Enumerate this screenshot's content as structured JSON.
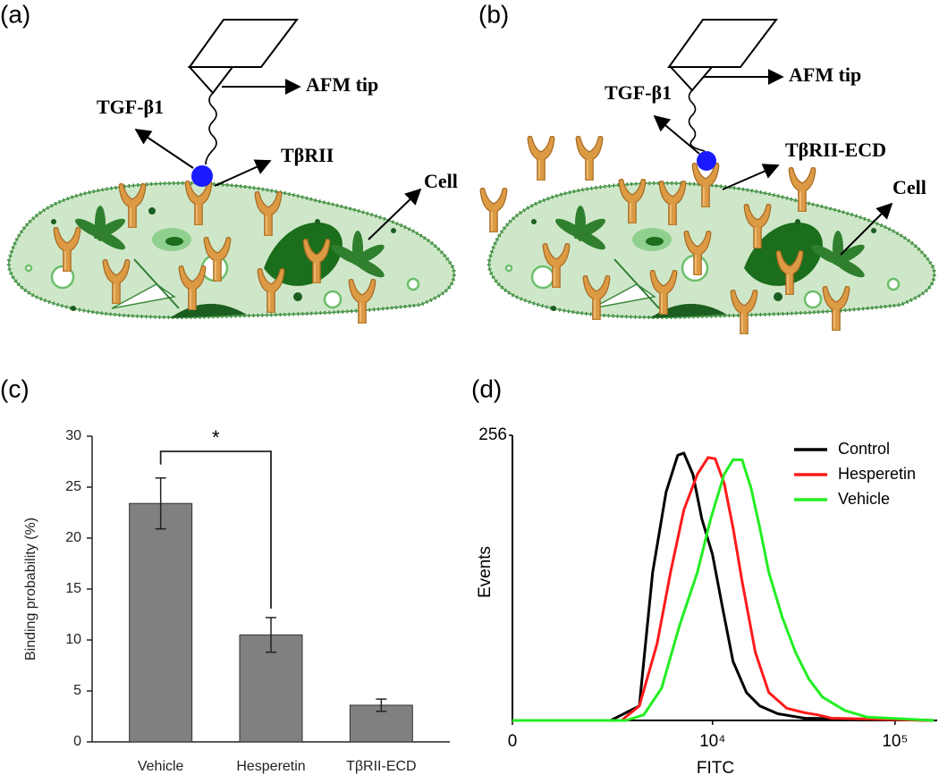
{
  "diagrams": [
    {
      "panel": "(a)",
      "tip": "AFM tip",
      "ligand": "TGF-β1",
      "receptor": "TβRII",
      "cell": "Cell"
    },
    {
      "panel": "(b)",
      "tip": "AFM tip",
      "ligand": "TGF-β1",
      "receptor": "TβRII-ECD",
      "cell": "Cell"
    }
  ],
  "chart_data": [
    {
      "panel": "(c)",
      "type": "bar",
      "ylabel": "Binding probability (%)",
      "categories": [
        "Vehicle",
        "Hesperetin",
        "TβRII-ECD"
      ],
      "values": [
        23.4,
        10.5,
        3.6
      ],
      "errors": [
        2.5,
        1.7,
        0.6
      ],
      "color": "#808080",
      "ylim": [
        0,
        30
      ],
      "yticks": [
        0,
        5,
        10,
        15,
        20,
        25,
        30
      ],
      "annotation": "*"
    },
    {
      "panel": "(d)",
      "type": "line",
      "xlabel": "FITC",
      "ylabel": "Events",
      "xscale": "biexponential",
      "xlim": [
        0,
        170000
      ],
      "xticks": [
        0,
        {
          "value": 10000,
          "label": "10⁴"
        },
        {
          "value": 100000,
          "label": "10⁵"
        }
      ],
      "ylim": [
        0,
        256
      ],
      "yticks": [
        256
      ],
      "legend": "upper right",
      "series": [
        {
          "name": "Control",
          "color": "#000000",
          "x": [
            0,
            2560,
            3843,
            4603,
            5497,
            6395,
            6930,
            7780,
            8725,
            10000,
            11370,
            12980,
            15390,
            18220,
            22840,
            32000,
            163300
          ],
          "values": [
            0,
            0,
            13,
            133,
            205,
            238,
            240,
            221,
            181,
            149,
            101,
            53,
            25,
            13,
            6,
            2,
            0
          ]
        },
        {
          "name": "Hesperetin",
          "color": "#ff1a1a",
          "x": [
            0,
            3000,
            3843,
            4883,
            5827,
            6930,
            8240,
            9445,
            10350,
            11600,
            12980,
            14550,
            17230,
            20410,
            25550,
            32000,
            37900,
            44850,
            163300
          ],
          "values": [
            0,
            0,
            13,
            69,
            133,
            189,
            221,
            236,
            235,
            213,
            173,
            125,
            61,
            25,
            11,
            7,
            5,
            2,
            0
          ]
        },
        {
          "name": "Vehicle",
          "color": "#22ee22",
          "x": [
            0,
            3190,
            4083,
            5180,
            6543,
            8240,
            9770,
            11600,
            12980,
            14550,
            16280,
            18220,
            20410,
            24150,
            28600,
            33850,
            40090,
            53100,
            70350,
            163300
          ],
          "values": [
            0,
            0,
            5,
            29,
            85,
            133,
            181,
            221,
            234,
            234,
            209,
            173,
            133,
            93,
            61,
            37,
            21,
            9,
            3,
            0
          ]
        }
      ]
    }
  ]
}
